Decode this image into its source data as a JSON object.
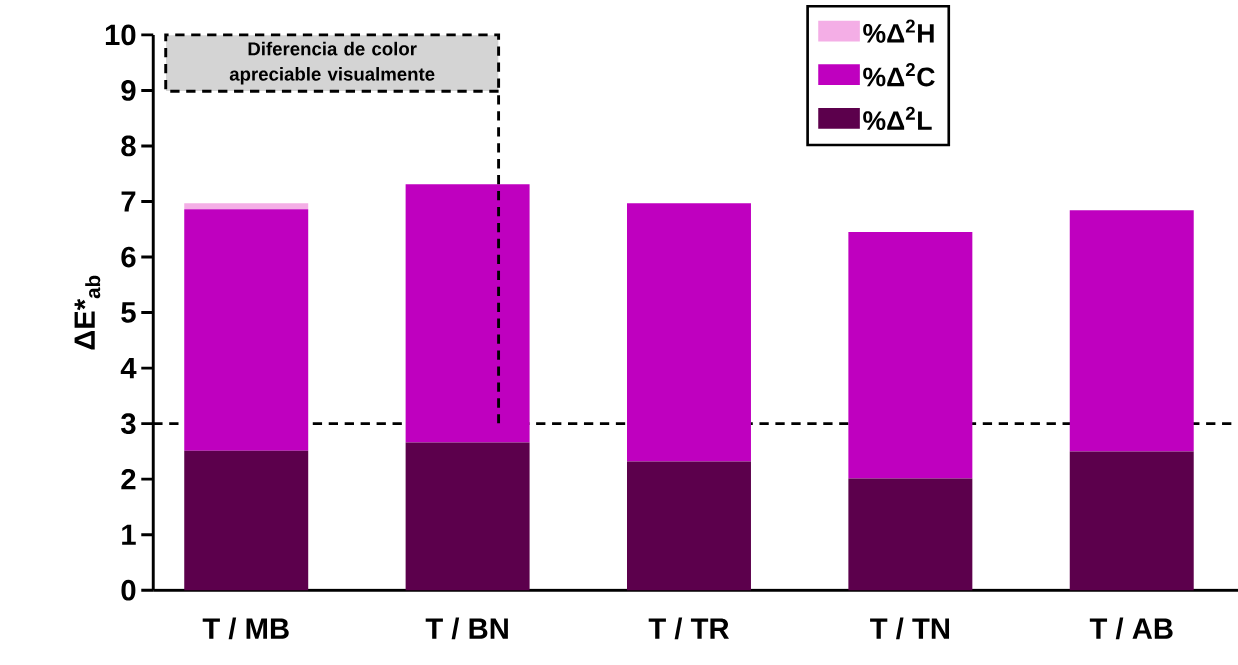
{
  "chart_data": {
    "type": "bar",
    "stacked": true,
    "categories": [
      "T / MB",
      "T / BN",
      "T / TR",
      "T / TN",
      "T / AB"
    ],
    "ylabel": "ΔE*$_{ab}$",
    "series": [
      {
        "name": "%Δ$^{2}$L",
        "color": "#5c004c",
        "values": [
          2.51,
          2.66,
          2.32,
          2.01,
          2.5
        ]
      },
      {
        "name": "%Δ$^{2}$C",
        "color": "#bf00bf",
        "values": [
          4.35,
          4.65,
          4.65,
          4.44,
          4.34
        ]
      },
      {
        "name": "%Δ$^{2}$H",
        "color": "#f4aee6",
        "values": [
          0.11,
          0,
          0,
          0,
          0
        ]
      }
    ],
    "ylim": [
      0,
      10
    ],
    "yticks": [
      0,
      1,
      2,
      3,
      4,
      5,
      6,
      7,
      8,
      9,
      10
    ],
    "ref_lines": [
      {
        "axis": "y",
        "value": 3,
        "color": "#000000",
        "line_style": "dashed"
      }
    ],
    "annotations": [
      "Diferencia de color apreciable visualmente"
    ],
    "legend": "top right"
  }
}
